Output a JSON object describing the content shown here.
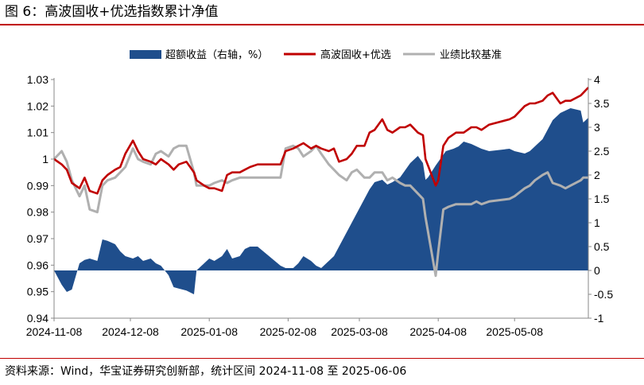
{
  "header": {
    "title": "图 6：高波固收+优选指数累计净值"
  },
  "footer": {
    "source": "资料来源：Wind，华宝证券研究创新部，统计区间 2024-11-08 至 2025-06-06"
  },
  "colors": {
    "area": "#1f4e8c",
    "nav": "#c00000",
    "benchmark": "#b0b0b0",
    "rule": "#c00000"
  },
  "chart_data": {
    "type": "line",
    "title": "高波固收+优选指数累计净值",
    "x_type": "date",
    "x_range": [
      "2024-11-08",
      "2025-06-06"
    ],
    "x_ticks": [
      "2024-11-08",
      "2024-12-08",
      "2025-01-08",
      "2025-02-08",
      "2025-03-08",
      "2025-04-08",
      "2025-05-08"
    ],
    "y_left": {
      "range": [
        0.94,
        1.03
      ],
      "ticks": [
        "0.94",
        "0.95",
        "0.96",
        "0.97",
        "0.98",
        "0.99",
        "1",
        "1.01",
        "1.02",
        "1.03"
      ]
    },
    "y_right": {
      "range": [
        -1,
        4
      ],
      "ticks": [
        "-1",
        "-0.5",
        "0",
        "0.5",
        "1",
        "1.5",
        "2",
        "2.5",
        "3",
        "3.5",
        "4"
      ]
    },
    "legend": {
      "position": "top",
      "items": [
        "超额收益（右轴，%）",
        "高波固收+优选",
        "业绩比较基准"
      ]
    },
    "series": [
      {
        "name": "超额收益（右轴，%）",
        "type": "area",
        "axis": "right",
        "points": [
          [
            "2024-11-08",
            0.0
          ],
          [
            "2024-11-11",
            -0.3
          ],
          [
            "2024-11-13",
            -0.45
          ],
          [
            "2024-11-15",
            -0.4
          ],
          [
            "2024-11-18",
            0.15
          ],
          [
            "2024-11-20",
            0.22
          ],
          [
            "2024-11-22",
            0.25
          ],
          [
            "2024-11-25",
            0.2
          ],
          [
            "2024-11-27",
            0.65
          ],
          [
            "2024-11-29",
            0.62
          ],
          [
            "2024-12-02",
            0.55
          ],
          [
            "2024-12-04",
            0.4
          ],
          [
            "2024-12-06",
            0.3
          ],
          [
            "2024-12-09",
            0.25
          ],
          [
            "2024-12-11",
            0.3
          ],
          [
            "2024-12-13",
            0.2
          ],
          [
            "2024-12-16",
            0.25
          ],
          [
            "2024-12-18",
            0.15
          ],
          [
            "2024-12-20",
            0.1
          ],
          [
            "2024-12-23",
            -0.1
          ],
          [
            "2024-12-25",
            -0.35
          ],
          [
            "2024-12-27",
            -0.38
          ],
          [
            "2024-12-30",
            -0.42
          ],
          [
            "2025-01-02",
            -0.5
          ],
          [
            "2025-01-03",
            0.0
          ],
          [
            "2025-01-06",
            0.15
          ],
          [
            "2025-01-08",
            0.25
          ],
          [
            "2025-01-10",
            0.2
          ],
          [
            "2025-01-13",
            0.3
          ],
          [
            "2025-01-15",
            0.45
          ],
          [
            "2025-01-17",
            0.25
          ],
          [
            "2025-01-20",
            0.3
          ],
          [
            "2025-01-22",
            0.45
          ],
          [
            "2025-01-24",
            0.5
          ],
          [
            "2025-01-27",
            0.5
          ],
          [
            "2025-02-05",
            0.1
          ],
          [
            "2025-02-07",
            0.05
          ],
          [
            "2025-02-10",
            0.05
          ],
          [
            "2025-02-12",
            0.15
          ],
          [
            "2025-02-14",
            0.3
          ],
          [
            "2025-02-17",
            0.2
          ],
          [
            "2025-02-19",
            0.1
          ],
          [
            "2025-02-21",
            0.05
          ],
          [
            "2025-02-24",
            0.2
          ],
          [
            "2025-02-26",
            0.3
          ],
          [
            "2025-02-28",
            0.5
          ],
          [
            "2025-03-03",
            0.8
          ],
          [
            "2025-03-05",
            1.0
          ],
          [
            "2025-03-07",
            1.2
          ],
          [
            "2025-03-10",
            1.5
          ],
          [
            "2025-03-12",
            1.7
          ],
          [
            "2025-03-14",
            1.85
          ],
          [
            "2025-03-17",
            1.9
          ],
          [
            "2025-03-19",
            1.8
          ],
          [
            "2025-03-21",
            1.85
          ],
          [
            "2025-03-24",
            1.95
          ],
          [
            "2025-03-26",
            2.1
          ],
          [
            "2025-03-28",
            2.25
          ],
          [
            "2025-03-31",
            2.4
          ],
          [
            "2025-04-02",
            2.25
          ],
          [
            "2025-04-03",
            1.9
          ],
          [
            "2025-04-04",
            1.95
          ],
          [
            "2025-04-07",
            2.2
          ],
          [
            "2025-04-09",
            2.35
          ],
          [
            "2025-04-11",
            2.5
          ],
          [
            "2025-04-14",
            2.55
          ],
          [
            "2025-04-16",
            2.6
          ],
          [
            "2025-04-18",
            2.7
          ],
          [
            "2025-04-21",
            2.65
          ],
          [
            "2025-04-23",
            2.6
          ],
          [
            "2025-04-25",
            2.55
          ],
          [
            "2025-04-28",
            2.5
          ],
          [
            "2025-05-06",
            2.55
          ],
          [
            "2025-05-08",
            2.5
          ],
          [
            "2025-05-12",
            2.45
          ],
          [
            "2025-05-14",
            2.5
          ],
          [
            "2025-05-16",
            2.6
          ],
          [
            "2025-05-19",
            2.75
          ],
          [
            "2025-05-21",
            2.95
          ],
          [
            "2025-05-23",
            3.15
          ],
          [
            "2025-05-26",
            3.3
          ],
          [
            "2025-05-28",
            3.35
          ],
          [
            "2025-05-30",
            3.4
          ],
          [
            "2025-06-03",
            3.35
          ],
          [
            "2025-06-04",
            3.1
          ],
          [
            "2025-06-06",
            3.2
          ]
        ]
      },
      {
        "name": "高波固收+优选",
        "type": "line",
        "axis": "left",
        "points": [
          [
            "2024-11-08",
            1.0
          ],
          [
            "2024-11-11",
            0.998
          ],
          [
            "2024-11-13",
            0.996
          ],
          [
            "2024-11-15",
            0.991
          ],
          [
            "2024-11-18",
            0.989
          ],
          [
            "2024-11-20",
            0.993
          ],
          [
            "2024-11-22",
            0.988
          ],
          [
            "2024-11-25",
            0.987
          ],
          [
            "2024-11-27",
            0.992
          ],
          [
            "2024-11-29",
            0.994
          ],
          [
            "2024-12-02",
            0.996
          ],
          [
            "2024-12-04",
            0.997
          ],
          [
            "2024-12-06",
            1.002
          ],
          [
            "2024-12-09",
            1.007
          ],
          [
            "2024-12-11",
            1.003
          ],
          [
            "2024-12-13",
            1.0
          ],
          [
            "2024-12-16",
            0.999
          ],
          [
            "2024-12-18",
            0.998
          ],
          [
            "2024-12-20",
            1.0
          ],
          [
            "2024-12-23",
            0.998
          ],
          [
            "2024-12-25",
            0.996
          ],
          [
            "2024-12-27",
            0.998
          ],
          [
            "2024-12-30",
            0.999
          ],
          [
            "2025-01-02",
            0.995
          ],
          [
            "2025-01-03",
            0.992
          ],
          [
            "2025-01-06",
            0.99
          ],
          [
            "2025-01-08",
            0.989
          ],
          [
            "2025-01-10",
            0.989
          ],
          [
            "2025-01-13",
            0.988
          ],
          [
            "2025-01-15",
            0.994
          ],
          [
            "2025-01-17",
            0.995
          ],
          [
            "2025-01-20",
            0.995
          ],
          [
            "2025-01-22",
            0.996
          ],
          [
            "2025-01-24",
            0.997
          ],
          [
            "2025-01-27",
            0.998
          ],
          [
            "2025-02-05",
            0.998
          ],
          [
            "2025-02-07",
            1.003
          ],
          [
            "2025-02-10",
            1.004
          ],
          [
            "2025-02-12",
            1.005
          ],
          [
            "2025-02-14",
            1.006
          ],
          [
            "2025-02-17",
            1.004
          ],
          [
            "2025-02-19",
            1.005
          ],
          [
            "2025-02-21",
            1.004
          ],
          [
            "2025-02-24",
            1.003
          ],
          [
            "2025-02-26",
            1.004
          ],
          [
            "2025-02-28",
            0.999
          ],
          [
            "2025-03-03",
            1.0
          ],
          [
            "2025-03-05",
            1.002
          ],
          [
            "2025-03-07",
            1.005
          ],
          [
            "2025-03-10",
            1.005
          ],
          [
            "2025-03-12",
            1.01
          ],
          [
            "2025-03-14",
            1.011
          ],
          [
            "2025-03-17",
            1.015
          ],
          [
            "2025-03-19",
            1.011
          ],
          [
            "2025-03-21",
            1.01
          ],
          [
            "2025-03-24",
            1.012
          ],
          [
            "2025-03-26",
            1.012
          ],
          [
            "2025-03-28",
            1.013
          ],
          [
            "2025-03-31",
            1.01
          ],
          [
            "2025-04-02",
            1.009
          ],
          [
            "2025-04-03",
            1.0
          ],
          [
            "2025-04-07",
            0.99
          ],
          [
            "2025-04-08",
            0.992
          ],
          [
            "2025-04-10",
            1.005
          ],
          [
            "2025-04-12",
            1.008
          ],
          [
            "2025-04-15",
            1.01
          ],
          [
            "2025-04-18",
            1.01
          ],
          [
            "2025-04-21",
            1.012
          ],
          [
            "2025-04-23",
            1.012
          ],
          [
            "2025-04-25",
            1.011
          ],
          [
            "2025-04-28",
            1.013
          ],
          [
            "2025-05-06",
            1.015
          ],
          [
            "2025-05-08",
            1.016
          ],
          [
            "2025-05-12",
            1.02
          ],
          [
            "2025-05-14",
            1.021
          ],
          [
            "2025-05-16",
            1.021
          ],
          [
            "2025-05-19",
            1.022
          ],
          [
            "2025-05-21",
            1.024
          ],
          [
            "2025-05-23",
            1.025
          ],
          [
            "2025-05-26",
            1.021
          ],
          [
            "2025-05-28",
            1.022
          ],
          [
            "2025-05-30",
            1.022
          ],
          [
            "2025-06-03",
            1.024
          ],
          [
            "2025-06-04",
            1.025
          ],
          [
            "2025-06-06",
            1.027
          ]
        ]
      },
      {
        "name": "业绩比较基准",
        "type": "line",
        "axis": "left",
        "points": [
          [
            "2024-11-08",
            1.0
          ],
          [
            "2024-11-11",
            1.003
          ],
          [
            "2024-11-13",
            0.999
          ],
          [
            "2024-11-15",
            0.992
          ],
          [
            "2024-11-18",
            0.986
          ],
          [
            "2024-11-20",
            0.99
          ],
          [
            "2024-11-22",
            0.981
          ],
          [
            "2024-11-25",
            0.98
          ],
          [
            "2024-11-27",
            0.99
          ],
          [
            "2024-11-29",
            0.992
          ],
          [
            "2024-12-02",
            0.993
          ],
          [
            "2024-12-04",
            0.995
          ],
          [
            "2024-12-06",
            0.997
          ],
          [
            "2024-12-09",
            1.004
          ],
          [
            "2024-12-11",
            1.0
          ],
          [
            "2024-12-13",
            0.999
          ],
          [
            "2024-12-16",
            0.998
          ],
          [
            "2024-12-18",
            1.002
          ],
          [
            "2024-12-20",
            1.003
          ],
          [
            "2024-12-23",
            1.001
          ],
          [
            "2024-12-25",
            1.004
          ],
          [
            "2024-12-27",
            1.005
          ],
          [
            "2024-12-30",
            1.005
          ],
          [
            "2025-01-02",
            0.995
          ],
          [
            "2025-01-03",
            0.99
          ],
          [
            "2025-01-06",
            0.99
          ],
          [
            "2025-01-08",
            0.99
          ],
          [
            "2025-01-10",
            0.991
          ],
          [
            "2025-01-13",
            0.992
          ],
          [
            "2025-01-15",
            0.991
          ],
          [
            "2025-01-17",
            0.992
          ],
          [
            "2025-01-20",
            0.993
          ],
          [
            "2025-01-22",
            0.993
          ],
          [
            "2025-01-24",
            0.993
          ],
          [
            "2025-01-27",
            0.993
          ],
          [
            "2025-02-05",
            0.993
          ],
          [
            "2025-02-07",
            1.004
          ],
          [
            "2025-02-10",
            1.005
          ],
          [
            "2025-02-12",
            1.004
          ],
          [
            "2025-02-14",
            1.001
          ],
          [
            "2025-02-17",
            1.003
          ],
          [
            "2025-02-19",
            1.005
          ],
          [
            "2025-02-21",
            1.002
          ],
          [
            "2025-02-24",
            0.998
          ],
          [
            "2025-02-26",
            0.996
          ],
          [
            "2025-02-28",
            0.994
          ],
          [
            "2025-03-03",
            0.992
          ],
          [
            "2025-03-05",
            0.995
          ],
          [
            "2025-03-07",
            0.996
          ],
          [
            "2025-03-10",
            0.993
          ],
          [
            "2025-03-12",
            0.993
          ],
          [
            "2025-03-14",
            0.995
          ],
          [
            "2025-03-17",
            0.995
          ],
          [
            "2025-03-19",
            0.992
          ],
          [
            "2025-03-21",
            0.993
          ],
          [
            "2025-03-24",
            0.991
          ],
          [
            "2025-03-26",
            0.99
          ],
          [
            "2025-03-28",
            0.99
          ],
          [
            "2025-03-31",
            0.987
          ],
          [
            "2025-04-02",
            0.985
          ],
          [
            "2025-04-03",
            0.978
          ],
          [
            "2025-04-07",
            0.956
          ],
          [
            "2025-04-08",
            0.965
          ],
          [
            "2025-04-10",
            0.981
          ],
          [
            "2025-04-12",
            0.982
          ],
          [
            "2025-04-15",
            0.983
          ],
          [
            "2025-04-18",
            0.983
          ],
          [
            "2025-04-21",
            0.983
          ],
          [
            "2025-04-23",
            0.984
          ],
          [
            "2025-04-25",
            0.983
          ],
          [
            "2025-04-28",
            0.984
          ],
          [
            "2025-05-06",
            0.985
          ],
          [
            "2025-05-08",
            0.986
          ],
          [
            "2025-05-12",
            0.989
          ],
          [
            "2025-05-14",
            0.99
          ],
          [
            "2025-05-16",
            0.992
          ],
          [
            "2025-05-19",
            0.994
          ],
          [
            "2025-05-21",
            0.995
          ],
          [
            "2025-05-23",
            0.991
          ],
          [
            "2025-05-26",
            0.99
          ],
          [
            "2025-05-28",
            0.989
          ],
          [
            "2025-05-30",
            0.99
          ],
          [
            "2025-06-03",
            0.992
          ],
          [
            "2025-06-04",
            0.993
          ],
          [
            "2025-06-06",
            0.993
          ]
        ]
      }
    ]
  }
}
